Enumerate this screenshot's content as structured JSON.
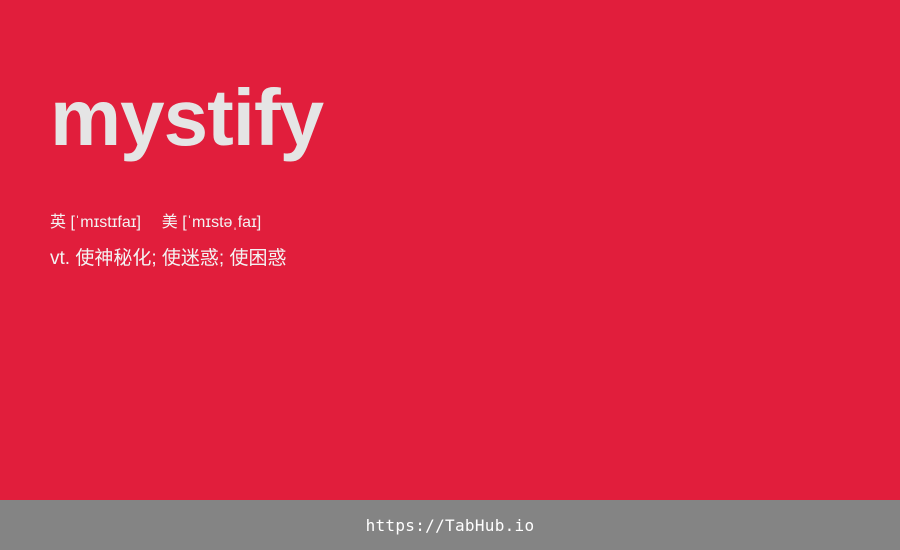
{
  "card": {
    "word": "mystify",
    "phonetics": {
      "uk_label": "英",
      "uk_ipa": "[ˈmɪstɪfaɪ]",
      "us_label": "美",
      "us_ipa": "[ˈmɪstəˌfaɪ]"
    },
    "definition": "vt. 使神秘化; 使迷惑; 使困惑"
  },
  "footer": {
    "link_text": "https://TabHub.io"
  },
  "colors": {
    "background": "#e11e3c",
    "word": "#e5e5e5",
    "footer_background": "#848484",
    "footer_text": "#ffffff"
  }
}
